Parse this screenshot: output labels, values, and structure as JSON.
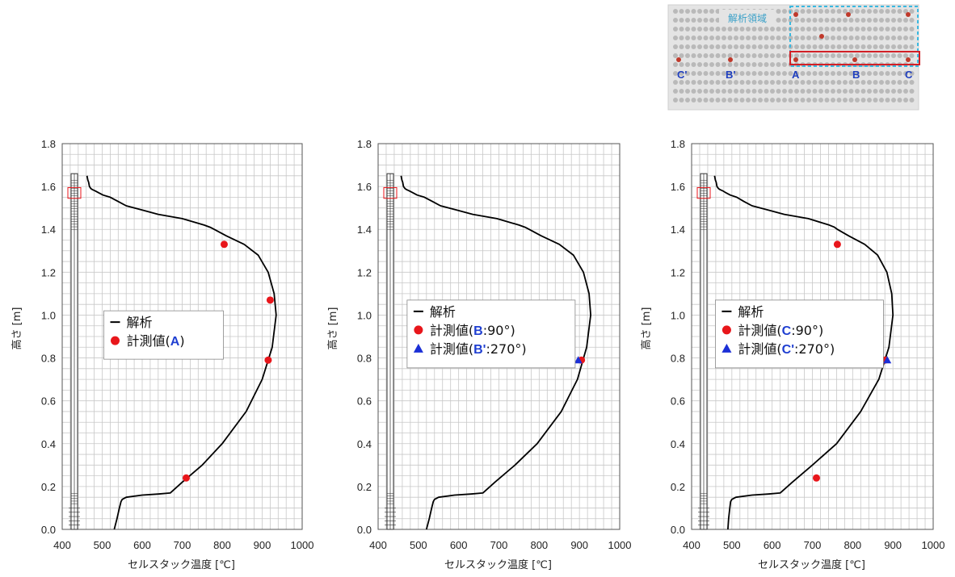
{
  "colors": {
    "curve": "#000000",
    "marker_red": "#e8161b",
    "marker_blue": "#1b2fd6",
    "grid": "#c8c8c8",
    "legend_letter": "#1f3fd1",
    "inset_box_red": "#d21f26",
    "inset_box_cyan": "#3ab8e0"
  },
  "inset": {
    "title": "解析領域",
    "labels": [
      "C'",
      "B'",
      "A",
      "B",
      "C"
    ]
  },
  "chart_data": [
    {
      "type": "line",
      "xlabel": "セルスタック温度 [℃]",
      "ylabel": "高さ [m]",
      "xlim": [
        400,
        1000
      ],
      "ylim": [
        0,
        1.8
      ],
      "xticks": [
        "400",
        "500",
        "600",
        "700",
        "800",
        "900",
        "1000"
      ],
      "yticks": [
        "0.0",
        "0.2",
        "0.4",
        "0.6",
        "0.8",
        "1.0",
        "1.2",
        "1.4",
        "1.6",
        "1.8"
      ],
      "grid": true,
      "legend_position": "center-left",
      "series": [
        {
          "name": "解析",
          "kind": "line",
          "x": [
            530,
            537,
            543,
            547,
            550,
            560,
            600,
            640,
            670,
            700,
            750,
            800,
            860,
            900,
            925,
            935,
            930,
            915,
            890,
            855,
            810,
            780,
            770,
            755,
            700,
            640,
            600,
            560,
            540,
            520,
            502,
            492,
            482,
            476,
            472,
            468,
            466,
            464,
            463,
            462
          ],
          "y": [
            0.0,
            0.05,
            0.1,
            0.13,
            0.14,
            0.15,
            0.16,
            0.165,
            0.17,
            0.22,
            0.3,
            0.4,
            0.55,
            0.7,
            0.85,
            1.0,
            1.1,
            1.2,
            1.28,
            1.33,
            1.37,
            1.4,
            1.41,
            1.42,
            1.45,
            1.47,
            1.49,
            1.51,
            1.53,
            1.55,
            1.56,
            1.57,
            1.58,
            1.585,
            1.59,
            1.6,
            1.62,
            1.63,
            1.64,
            1.65
          ]
        },
        {
          "name": "計測値(A)",
          "kind": "circle",
          "color": "red",
          "x": [
            805,
            920,
            915,
            710
          ],
          "y": [
            1.33,
            1.07,
            0.79,
            0.24
          ]
        }
      ],
      "legend": [
        {
          "marker": "line",
          "pre": "解析",
          "letter": "",
          "post": ""
        },
        {
          "marker": "circle",
          "pre": "計測値(",
          "letter": "A",
          "post": ")"
        }
      ]
    },
    {
      "type": "line",
      "xlabel": "セルスタック温度 [℃]",
      "ylabel": "高さ [m]",
      "xlim": [
        400,
        1000
      ],
      "ylim": [
        0,
        1.8
      ],
      "xticks": [
        "400",
        "500",
        "600",
        "700",
        "800",
        "900",
        "1000"
      ],
      "yticks": [
        "0.0",
        "0.2",
        "0.4",
        "0.6",
        "0.8",
        "1.0",
        "1.2",
        "1.4",
        "1.6",
        "1.8"
      ],
      "grid": true,
      "legend_position": "center",
      "series": [
        {
          "name": "解析",
          "kind": "line",
          "x": [
            520,
            527,
            533,
            537,
            540,
            550,
            590,
            630,
            660,
            690,
            740,
            795,
            855,
            895,
            918,
            928,
            924,
            910,
            885,
            850,
            805,
            775,
            765,
            750,
            695,
            635,
            595,
            555,
            535,
            515,
            497,
            487,
            477,
            471,
            467,
            463,
            461,
            459,
            458,
            457
          ],
          "y": [
            0.0,
            0.05,
            0.1,
            0.13,
            0.14,
            0.15,
            0.16,
            0.165,
            0.17,
            0.22,
            0.3,
            0.4,
            0.55,
            0.7,
            0.85,
            1.0,
            1.1,
            1.2,
            1.28,
            1.33,
            1.37,
            1.4,
            1.41,
            1.42,
            1.45,
            1.47,
            1.49,
            1.51,
            1.53,
            1.55,
            1.56,
            1.57,
            1.58,
            1.585,
            1.59,
            1.6,
            1.62,
            1.63,
            1.64,
            1.65
          ]
        },
        {
          "name": "計測値(B:90°)",
          "kind": "circle",
          "color": "red",
          "x": [
            905
          ],
          "y": [
            0.79
          ]
        },
        {
          "name": "計測値(B':270°)",
          "kind": "triangle",
          "color": "blue",
          "x": [
            897
          ],
          "y": [
            0.79
          ]
        }
      ],
      "legend": [
        {
          "marker": "line",
          "pre": "解析",
          "letter": "",
          "post": ""
        },
        {
          "marker": "circle",
          "pre": "計測値(",
          "letter": "B",
          "post": ":90°)"
        },
        {
          "marker": "triangle",
          "pre": "計測値(",
          "letter": "B'",
          "post": ":270°)"
        }
      ]
    },
    {
      "type": "line",
      "xlabel": "セルスタック温度 [℃]",
      "ylabel": "高さ [m]",
      "xlim": [
        400,
        1000
      ],
      "ylim": [
        0,
        1.8
      ],
      "xticks": [
        "400",
        "500",
        "600",
        "700",
        "800",
        "900",
        "1000"
      ],
      "yticks": [
        "0.0",
        "0.2",
        "0.4",
        "0.6",
        "0.8",
        "1.0",
        "1.2",
        "1.4",
        "1.6",
        "1.8"
      ],
      "grid": true,
      "legend_position": "center",
      "series": [
        {
          "name": "解析",
          "kind": "line",
          "x": [
            490,
            492,
            495,
            497,
            500,
            510,
            550,
            590,
            620,
            650,
            700,
            760,
            820,
            865,
            890,
            900,
            897,
            885,
            862,
            830,
            790,
            762,
            755,
            742,
            690,
            630,
            590,
            550,
            530,
            512,
            496,
            486,
            477,
            471,
            467,
            463,
            461,
            459,
            458,
            457
          ],
          "y": [
            0.0,
            0.05,
            0.1,
            0.13,
            0.14,
            0.15,
            0.16,
            0.165,
            0.17,
            0.22,
            0.3,
            0.4,
            0.55,
            0.7,
            0.85,
            1.0,
            1.1,
            1.2,
            1.28,
            1.33,
            1.37,
            1.4,
            1.41,
            1.42,
            1.45,
            1.47,
            1.49,
            1.51,
            1.53,
            1.55,
            1.56,
            1.57,
            1.58,
            1.585,
            1.59,
            1.6,
            1.62,
            1.63,
            1.64,
            1.65
          ]
        },
        {
          "name": "計測値(C:90°)",
          "kind": "circle",
          "color": "red",
          "x": [
            762,
            880,
            710
          ],
          "y": [
            1.33,
            0.79,
            0.24
          ]
        },
        {
          "name": "計測値(C':270°)",
          "kind": "triangle",
          "color": "blue",
          "x": [
            886
          ],
          "y": [
            0.79
          ]
        }
      ],
      "legend": [
        {
          "marker": "line",
          "pre": "解析",
          "letter": "",
          "post": ""
        },
        {
          "marker": "circle",
          "pre": "計測値(",
          "letter": "C",
          "post": ":90°)"
        },
        {
          "marker": "triangle",
          "pre": "計測値(",
          "letter": "C'",
          "post": ":270°)"
        }
      ]
    }
  ]
}
